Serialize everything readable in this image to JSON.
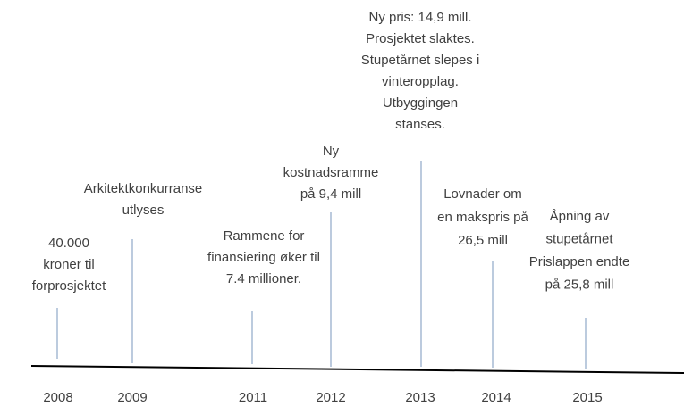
{
  "timeline": {
    "events": [
      {
        "year": "2008",
        "lines": [
          "40.000",
          "kroner til",
          "forprosjektet"
        ]
      },
      {
        "year": "2009",
        "lines": [
          "Arkitektkonkurranse",
          "utlyses"
        ]
      },
      {
        "year": "2011",
        "lines": [
          "Rammene for",
          "finansiering øker til",
          "7.4 millioner."
        ]
      },
      {
        "year": "2012",
        "lines": [
          "Ny",
          "kostnadsramme",
          "på 9,4 mill"
        ]
      },
      {
        "year": "2013",
        "lines": [
          "Ny pris: 14,9 mill.",
          "Prosjektet slaktes.",
          "Stupetårnet slepes i",
          "vinteropplag.",
          "Utbyggingen",
          "stanses."
        ]
      },
      {
        "year": "2014",
        "lines": [
          "Lovnader om",
          "en makspris på",
          "26,5 mill"
        ]
      },
      {
        "year": "2015",
        "lines": [
          "Åpning av",
          "stupetårnet",
          "Prislappen endte",
          "på 25,8 mill"
        ]
      }
    ]
  }
}
